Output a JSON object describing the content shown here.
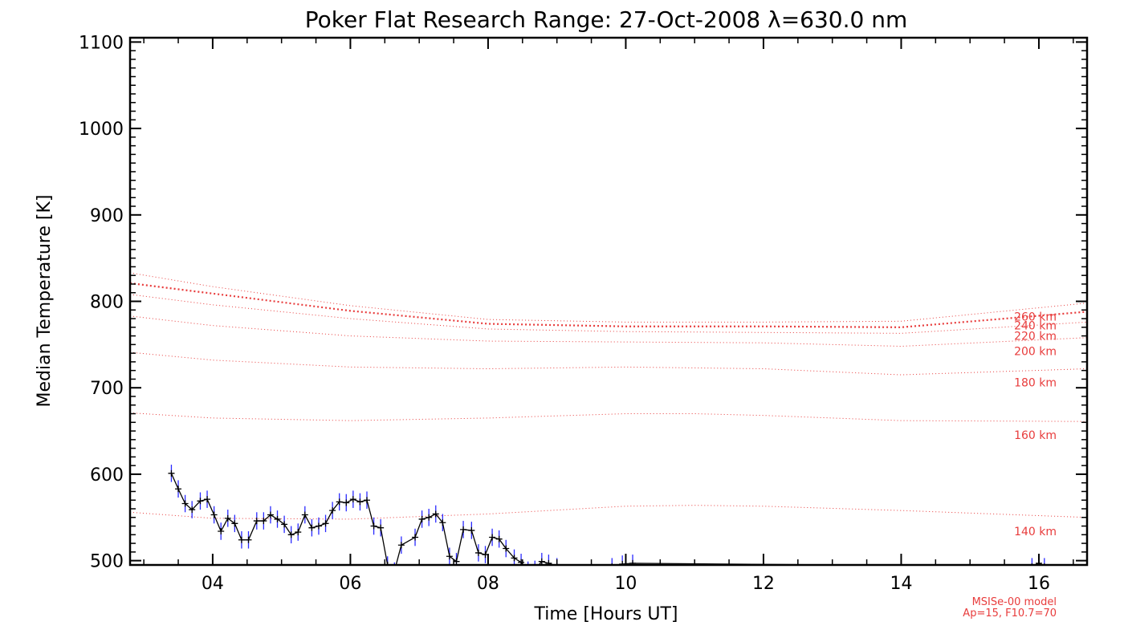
{
  "chart_data": {
    "type": "line",
    "title": "Poker Flat Research Range: 27-Oct-2008 λ=630.0 nm",
    "xlabel": "Time [Hours UT]",
    "ylabel": "Median Temperature [K]",
    "xlim": [
      2.8,
      16.7
    ],
    "ylim": [
      495,
      1105
    ],
    "x_ticks": [
      4,
      6,
      8,
      10,
      12,
      14,
      16
    ],
    "x_tick_labels": [
      "04",
      "06",
      "08",
      "10",
      "12",
      "14",
      "16"
    ],
    "y_ticks": [
      500,
      600,
      700,
      800,
      900,
      1000,
      1100
    ],
    "y_tick_labels": [
      "500",
      "600",
      "700",
      "800",
      "900",
      "1000",
      "1100"
    ],
    "colors": {
      "measured_line": "#000000",
      "error_bars": "#2a2aff",
      "model": "#e83c3c"
    },
    "model_curves": [
      {
        "label": "140 km",
        "x": [
          2.8,
          4,
          6,
          8,
          10,
          11,
          12,
          14,
          16.7
        ],
        "y": [
          556,
          549,
          548,
          554,
          563,
          564,
          563,
          558,
          550
        ]
      },
      {
        "label": "160 km",
        "x": [
          2.8,
          4,
          6,
          8,
          10,
          11,
          12,
          14,
          16.7
        ],
        "y": [
          671,
          665,
          662,
          665,
          670,
          670,
          668,
          662,
          661
        ]
      },
      {
        "label": "180 km",
        "x": [
          2.8,
          4,
          6,
          8,
          10,
          12,
          14,
          16.7
        ],
        "y": [
          741,
          732,
          724,
          722,
          724,
          722,
          715,
          722
        ]
      },
      {
        "label": "200 km",
        "x": [
          2.8,
          4,
          6,
          8,
          10,
          12,
          14,
          16.7
        ],
        "y": [
          783,
          772,
          760,
          754,
          753,
          752,
          748,
          758
        ]
      },
      {
        "label": "220 km",
        "x": [
          2.8,
          4,
          6,
          8,
          10,
          12,
          14,
          16.7
        ],
        "y": [
          808,
          796,
          780,
          768,
          765,
          764,
          763,
          776
        ]
      },
      {
        "label": "240 km",
        "x": [
          2.8,
          4,
          6,
          8,
          10,
          12,
          14,
          16.7
        ],
        "y": [
          821,
          809,
          789,
          774,
          771,
          771,
          770,
          788
        ]
      },
      {
        "label": "260 km",
        "x": [
          2.8,
          4,
          6,
          8,
          10,
          12,
          14,
          16.7
        ],
        "y": [
          833,
          817,
          795,
          779,
          776,
          776,
          777,
          798
        ]
      }
    ],
    "highlighted_model_curve": "240 km",
    "series": [
      {
        "x": [
          3.4,
          3.5,
          3.6,
          3.7,
          3.82,
          3.92,
          4.02,
          4.12,
          4.22,
          4.32,
          4.42,
          4.52,
          4.64,
          4.74,
          4.84,
          4.94,
          5.04,
          5.14,
          5.24,
          5.34,
          5.44,
          5.54,
          5.64,
          5.74,
          5.84,
          5.94,
          6.04,
          6.14,
          6.24,
          6.34,
          6.44,
          6.54,
          6.64,
          6.74,
          6.94,
          7.04,
          7.14,
          7.24,
          7.34,
          7.44,
          7.54,
          7.64,
          7.76,
          7.86,
          7.96,
          8.06,
          8.16,
          8.26,
          8.38,
          8.48,
          8.58,
          8.68,
          8.78,
          8.88,
          9.0,
          9.8,
          9.95,
          10.1,
          15.9,
          16.0,
          16.08
        ],
        "y": [
          601,
          583,
          566,
          559,
          569,
          571,
          553,
          534,
          549,
          543,
          524,
          524,
          546,
          546,
          553,
          548,
          542,
          530,
          533,
          553,
          538,
          540,
          543,
          558,
          568,
          567,
          571,
          568,
          570,
          540,
          538,
          495,
          488,
          518,
          527,
          548,
          550,
          554,
          544,
          505,
          499,
          536,
          535,
          509,
          507,
          527,
          525,
          514,
          503,
          498,
          489,
          490,
          499,
          497,
          493,
          493,
          496,
          497,
          493,
          497,
          493
        ],
        "err": [
          10,
          10,
          10,
          10,
          10,
          10,
          10,
          10,
          10,
          10,
          10,
          10,
          10,
          10,
          10,
          10,
          10,
          10,
          10,
          10,
          10,
          10,
          10,
          10,
          10,
          10,
          10,
          10,
          10,
          10,
          10,
          10,
          10,
          10,
          10,
          10,
          10,
          10,
          10,
          10,
          10,
          10,
          10,
          10,
          10,
          10,
          10,
          10,
          10,
          10,
          10,
          10,
          10,
          10,
          10,
          10,
          10,
          10,
          10,
          10,
          10
        ]
      }
    ],
    "annotations": [
      "MSISe-00 model",
      "Ap=15, F10.7=70"
    ]
  }
}
